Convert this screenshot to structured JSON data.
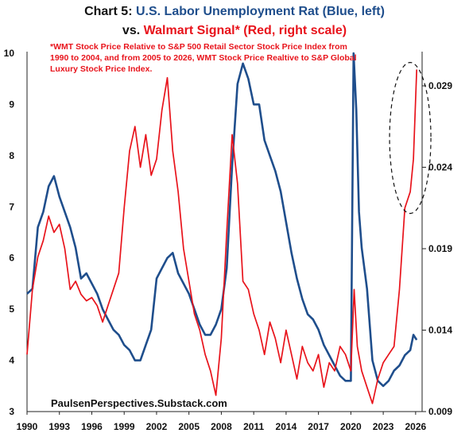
{
  "title": {
    "line1_prefix": "Chart 5: ",
    "line1_series": "U.S. Labor Unemployment Rat (Blue, left)",
    "line2_prefix": "vs. ",
    "line2_series": "Walmart Signal* (Red, right scale)"
  },
  "footnote": "*WMT Stock Price Relative to S&P 500 Retail Sector Stock Price Index from 1990 to 2004, and from 2005 to 2026, WMT Stock Price Realtive to S&P Global Luxury Stock Price Index.",
  "credit": "PaulsenPerspectives.Substack.com",
  "colors": {
    "blue": "#1f4e8c",
    "red": "#e8131b"
  },
  "chart_data": {
    "type": "line",
    "x_tick_labels": [
      "1990",
      "1993",
      "1996",
      "1999",
      "2002",
      "2005",
      "2008",
      "2011",
      "2014",
      "2017",
      "2020",
      "2023",
      "2026"
    ],
    "left_axis": {
      "ylim": [
        3,
        10
      ],
      "tick_labels": [
        "3",
        "4",
        "5",
        "6",
        "7",
        "8",
        "9",
        "10"
      ]
    },
    "right_axis": {
      "ylim": [
        0.009,
        0.031
      ],
      "tick_labels": [
        "0.009",
        "0.014",
        "0.019",
        "0.024",
        "0.029"
      ]
    },
    "annotation": "dashed ellipse around recent red spike",
    "series": [
      {
        "axis": "left",
        "color": "#1f4e8c",
        "points": [
          [
            1990,
            5.3
          ],
          [
            1990.5,
            5.4
          ],
          [
            1991,
            6.6
          ],
          [
            1991.5,
            6.9
          ],
          [
            1992,
            7.4
          ],
          [
            1992.5,
            7.6
          ],
          [
            1993,
            7.2
          ],
          [
            1993.5,
            6.9
          ],
          [
            1994,
            6.6
          ],
          [
            1994.5,
            6.2
          ],
          [
            1995,
            5.6
          ],
          [
            1995.5,
            5.7
          ],
          [
            1996,
            5.5
          ],
          [
            1996.5,
            5.3
          ],
          [
            1997,
            5.0
          ],
          [
            1997.5,
            4.8
          ],
          [
            1998,
            4.6
          ],
          [
            1998.5,
            4.5
          ],
          [
            1999,
            4.3
          ],
          [
            1999.5,
            4.2
          ],
          [
            2000,
            4.0
          ],
          [
            2000.5,
            4.0
          ],
          [
            2001,
            4.3
          ],
          [
            2001.5,
            4.6
          ],
          [
            2002,
            5.6
          ],
          [
            2002.5,
            5.8
          ],
          [
            2003,
            6.0
          ],
          [
            2003.5,
            6.1
          ],
          [
            2004,
            5.7
          ],
          [
            2004.5,
            5.5
          ],
          [
            2005,
            5.3
          ],
          [
            2005.5,
            5.0
          ],
          [
            2006,
            4.7
          ],
          [
            2006.5,
            4.5
          ],
          [
            2007,
            4.5
          ],
          [
            2007.5,
            4.7
          ],
          [
            2008,
            5.0
          ],
          [
            2008.5,
            5.8
          ],
          [
            2009,
            7.8
          ],
          [
            2009.5,
            9.4
          ],
          [
            2010,
            9.8
          ],
          [
            2010.5,
            9.5
          ],
          [
            2011,
            9.0
          ],
          [
            2011.5,
            9.0
          ],
          [
            2012,
            8.3
          ],
          [
            2012.5,
            8.0
          ],
          [
            2013,
            7.7
          ],
          [
            2013.5,
            7.3
          ],
          [
            2014,
            6.7
          ],
          [
            2014.5,
            6.1
          ],
          [
            2015,
            5.6
          ],
          [
            2015.5,
            5.2
          ],
          [
            2016,
            4.9
          ],
          [
            2016.5,
            4.8
          ],
          [
            2017,
            4.6
          ],
          [
            2017.5,
            4.3
          ],
          [
            2018,
            4.1
          ],
          [
            2018.5,
            3.9
          ],
          [
            2019,
            3.7
          ],
          [
            2019.5,
            3.6
          ],
          [
            2020,
            3.6
          ],
          [
            2020.25,
            10.0
          ],
          [
            2020.5,
            8.9
          ],
          [
            2020.75,
            6.9
          ],
          [
            2021,
            6.2
          ],
          [
            2021.5,
            5.4
          ],
          [
            2022,
            4.0
          ],
          [
            2022.5,
            3.6
          ],
          [
            2023,
            3.5
          ],
          [
            2023.5,
            3.6
          ],
          [
            2024,
            3.8
          ],
          [
            2024.5,
            3.9
          ],
          [
            2025,
            4.1
          ],
          [
            2025.5,
            4.2
          ],
          [
            2025.8,
            4.5
          ],
          [
            2026.1,
            4.4
          ]
        ]
      },
      {
        "axis": "right",
        "color": "#e8131b",
        "points": [
          [
            1990,
            0.0125
          ],
          [
            1990.5,
            0.0165
          ],
          [
            1991,
            0.0185
          ],
          [
            1991.5,
            0.0195
          ],
          [
            1992,
            0.021
          ],
          [
            1992.5,
            0.02
          ],
          [
            1993,
            0.0205
          ],
          [
            1993.5,
            0.019
          ],
          [
            1994,
            0.0165
          ],
          [
            1994.5,
            0.017
          ],
          [
            1995,
            0.0162
          ],
          [
            1995.5,
            0.0158
          ],
          [
            1996,
            0.016
          ],
          [
            1996.5,
            0.0155
          ],
          [
            1997,
            0.0145
          ],
          [
            1997.5,
            0.0155
          ],
          [
            1998,
            0.0165
          ],
          [
            1998.5,
            0.0175
          ],
          [
            1999,
            0.0215
          ],
          [
            1999.5,
            0.025
          ],
          [
            2000,
            0.0265
          ],
          [
            2000.5,
            0.024
          ],
          [
            2001,
            0.026
          ],
          [
            2001.5,
            0.0235
          ],
          [
            2002,
            0.0245
          ],
          [
            2002.5,
            0.0275
          ],
          [
            2003,
            0.0295
          ],
          [
            2003.5,
            0.025
          ],
          [
            2004,
            0.0225
          ],
          [
            2004.5,
            0.019
          ],
          [
            2005,
            0.017
          ],
          [
            2005.5,
            0.015
          ],
          [
            2006,
            0.014
          ],
          [
            2006.5,
            0.0125
          ],
          [
            2007,
            0.0115
          ],
          [
            2007.5,
            0.01
          ],
          [
            2008,
            0.0135
          ],
          [
            2008.5,
            0.02
          ],
          [
            2009,
            0.026
          ],
          [
            2009.5,
            0.023
          ],
          [
            2010,
            0.017
          ],
          [
            2010.5,
            0.0165
          ],
          [
            2011,
            0.015
          ],
          [
            2011.5,
            0.014
          ],
          [
            2012,
            0.0125
          ],
          [
            2012.5,
            0.0145
          ],
          [
            2013,
            0.0135
          ],
          [
            2013.5,
            0.012
          ],
          [
            2014,
            0.014
          ],
          [
            2014.5,
            0.0125
          ],
          [
            2015,
            0.011
          ],
          [
            2015.5,
            0.013
          ],
          [
            2016,
            0.012
          ],
          [
            2016.5,
            0.0115
          ],
          [
            2017,
            0.0125
          ],
          [
            2017.5,
            0.0105
          ],
          [
            2018,
            0.012
          ],
          [
            2018.5,
            0.0115
          ],
          [
            2019,
            0.013
          ],
          [
            2019.5,
            0.0125
          ],
          [
            2020,
            0.0115
          ],
          [
            2020.3,
            0.0165
          ],
          [
            2020.6,
            0.013
          ],
          [
            2021,
            0.0115
          ],
          [
            2021.5,
            0.0105
          ],
          [
            2022,
            0.0095
          ],
          [
            2022.5,
            0.011
          ],
          [
            2023,
            0.012
          ],
          [
            2023.5,
            0.0125
          ],
          [
            2024,
            0.013
          ],
          [
            2024.5,
            0.0165
          ],
          [
            2025,
            0.0215
          ],
          [
            2025.5,
            0.0225
          ],
          [
            2025.8,
            0.0245
          ],
          [
            2026.1,
            0.03
          ]
        ]
      }
    ]
  }
}
